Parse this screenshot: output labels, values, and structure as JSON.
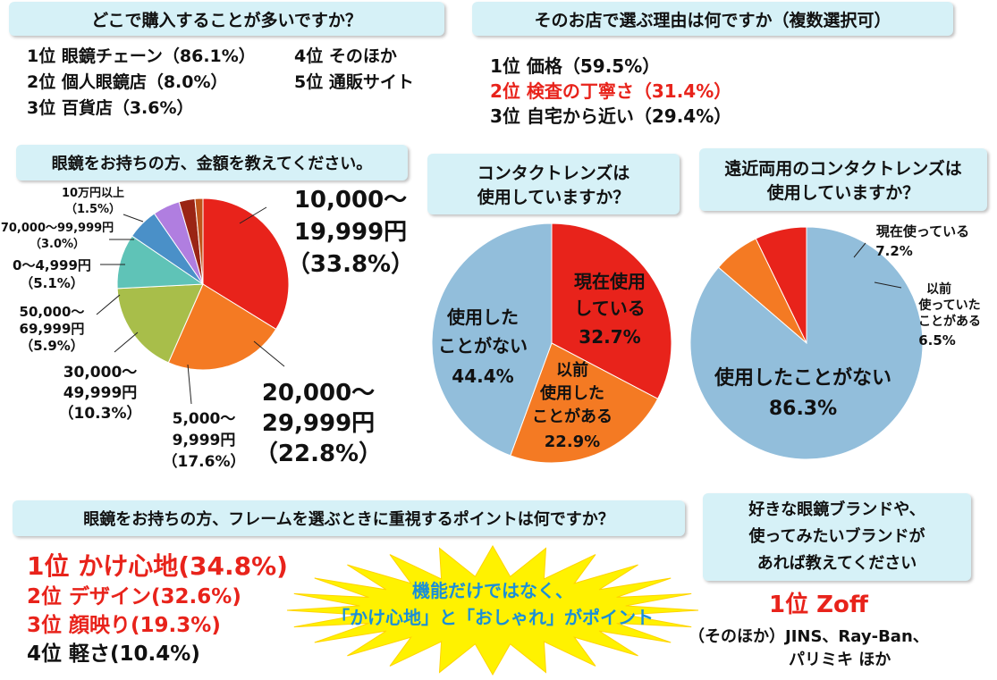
{
  "q1": {
    "title": "どこで購入することが多いですか？",
    "items": [
      "1位 眼鏡チェーン（86.1%）",
      "2位 個人眼鏡店（8.0%）",
      "3位 百貨店（3.6%）",
      "4位 そのほか",
      "5位 通販サイト"
    ]
  },
  "q2": {
    "title": "そのお店で選ぶ理由は何ですか（複数選択可）",
    "items": [
      "1位 価格（59.5%）",
      "2位 検査の丁寧さ（31.4%）",
      "3位 自宅から近い（29.4%）"
    ],
    "highlight_color": "#e8231b"
  },
  "q3": {
    "title": "眼鏡をお持ちの方、金額を教えてください。",
    "labels": {
      "l1": [
        "10,000～",
        "19,999円",
        "（33.8%）"
      ],
      "l2": [
        "20,000～",
        "29,999円",
        "（22.8%）"
      ],
      "l3": [
        "5,000～",
        "9,999円",
        "（17.6%）"
      ],
      "l4": [
        "30,000～",
        "49,999円",
        "（10.3%）"
      ],
      "l5": [
        "50,000～",
        "69,999円",
        "（5.9%）"
      ],
      "l6": [
        "0～4,999円",
        "（5.1%）"
      ],
      "l7": [
        "70,000～99,999円",
        "（3.0%）"
      ],
      "l8": [
        "10万円以上",
        "（1.5%）"
      ]
    }
  },
  "q4": {
    "title_lines": [
      "コンタクトレンズは",
      "使用していますか？"
    ],
    "labels": {
      "a": [
        "現在使用",
        "している",
        "32.7%"
      ],
      "b": [
        "以前",
        "使用した",
        "ことがある",
        "22.9%"
      ],
      "c": [
        "使用した",
        "ことがない",
        "44.4%"
      ]
    }
  },
  "q5": {
    "title_lines": [
      "遠近両用のコンタクトレンズは",
      "使用していますか？"
    ],
    "labels": {
      "a": [
        "現在使っている",
        "7.2%"
      ],
      "b": [
        "以前",
        "使っていた",
        "ことがある",
        "6.5%"
      ],
      "c": [
        "使用したことがない",
        "86.3%"
      ]
    }
  },
  "q6": {
    "title": "眼鏡をお持ちの方、フレームを選ぶときに重視するポイントは何ですか？",
    "items": [
      "1位 かけ心地(34.8%)",
      "2位 デザイン(32.6%)",
      "3位 顔映り(19.3%)",
      "4位 軽さ(10.4%)"
    ]
  },
  "burst": {
    "line1": "機能だけではなく、",
    "line2": "「かけ心地」と「おしゃれ」がポイント",
    "text_color": "#1a8fd8",
    "fill_color": "#fff200"
  },
  "q7": {
    "title_lines": [
      "好きな眼鏡ブランドや、",
      "使ってみたいブランドが",
      "あれば教えてください"
    ],
    "top": "1位 Zoff",
    "others_line1": "（そのほか）JINS、Ray-Ban、",
    "others_line2": "パリミキ ほか"
  },
  "chart_data": [
    {
      "type": "pie",
      "title": "眼鏡をお持ちの方、金額を教えてください。",
      "categories": [
        "10,000～19,999円",
        "20,000～29,999円",
        "5,000～9,999円",
        "30,000～49,999円",
        "50,000～69,999円",
        "0～4,999円",
        "70,000～99,999円",
        "10万円以上"
      ],
      "values": [
        33.8,
        22.8,
        17.6,
        10.3,
        5.9,
        5.1,
        3.0,
        1.5
      ],
      "colors": [
        "#e8231b",
        "#f47a23",
        "#a8be4a",
        "#5fc3b7",
        "#4a90c8",
        "#b07ee0",
        "#9a2414",
        "#c0541a"
      ]
    },
    {
      "type": "pie",
      "title": "コンタクトレンズは使用していますか？",
      "categories": [
        "現在使用している",
        "以前使用したことがある",
        "使用したことがない"
      ],
      "values": [
        32.7,
        22.9,
        44.4
      ],
      "colors": [
        "#e8231b",
        "#f47a23",
        "#92bedb"
      ]
    },
    {
      "type": "pie",
      "title": "遠近両用のコンタクトレンズは使用していますか？",
      "categories": [
        "現在使っている",
        "以前使っていたことがある",
        "使用したことがない"
      ],
      "values": [
        7.2,
        6.5,
        86.3
      ],
      "colors": [
        "#e8231b",
        "#f47a23",
        "#92bedb"
      ]
    }
  ]
}
